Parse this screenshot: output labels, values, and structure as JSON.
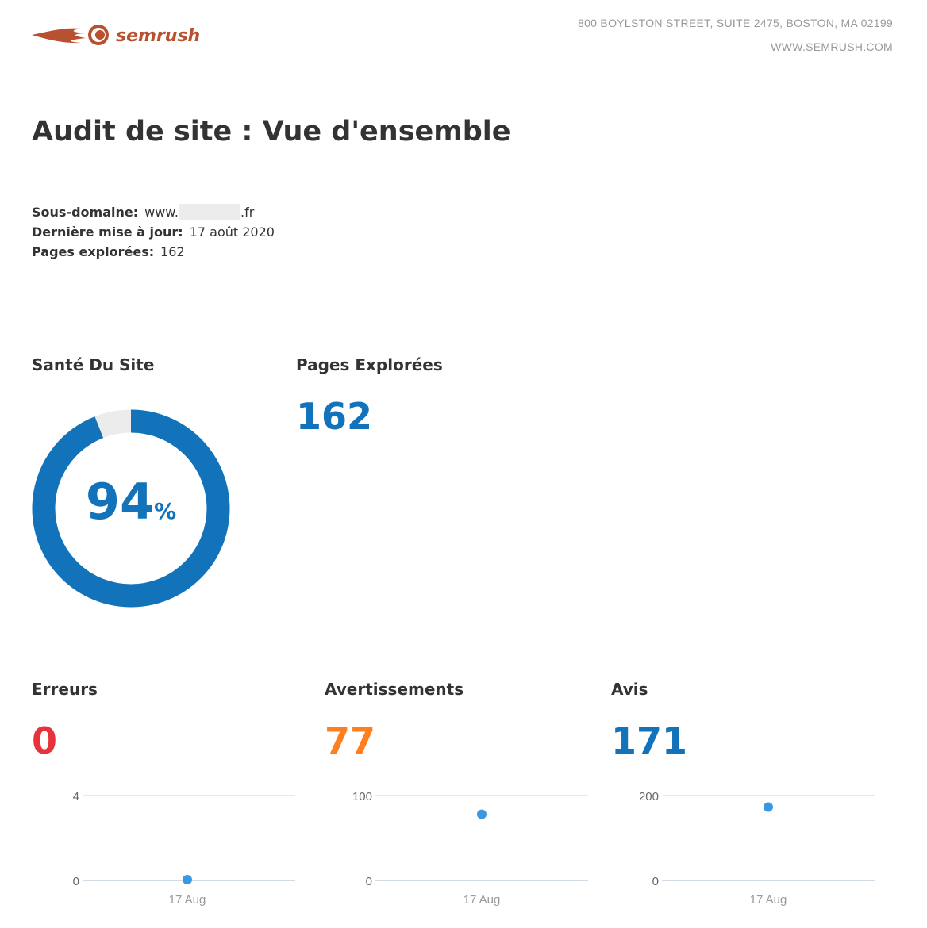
{
  "brand": {
    "name": "semrush",
    "color": "#b8512f"
  },
  "header": {
    "address": "800 BOYLSTON STREET, SUITE 2475, BOSTON, MA 02199",
    "website": "WWW.SEMRUSH.COM"
  },
  "title": "Audit de site : Vue d'ensemble",
  "meta": {
    "subdomain_label": "Sous-domaine:",
    "subdomain_prefix": "www.",
    "subdomain_suffix": ".fr",
    "updated_label": "Dernière mise à jour:",
    "updated_value": "17 août 2020",
    "pages_label": "Pages explorées:",
    "pages_value": "162"
  },
  "health": {
    "label": "Santé Du Site",
    "value": "94",
    "unit": "%",
    "percent": 94,
    "color": "#1273ba",
    "rest_color": "#ececec"
  },
  "crawled": {
    "label": "Pages Explorées",
    "value": "162",
    "color": "#1273ba"
  },
  "metrics": [
    {
      "label": "Erreurs",
      "value": "0",
      "color": "#e8313a"
    },
    {
      "label": "Avertissements",
      "value": "77",
      "color": "#ff7f1f"
    },
    {
      "label": "Avis",
      "value": "171",
      "color": "#1273ba"
    }
  ],
  "chart_data": [
    {
      "type": "scatter",
      "title": "Erreurs",
      "x": [
        "17 Aug"
      ],
      "values": [
        0
      ],
      "ylim": [
        0,
        4
      ],
      "yticks": [
        "0",
        "4"
      ],
      "grid": true
    },
    {
      "type": "scatter",
      "title": "Avertissements",
      "x": [
        "17 Aug"
      ],
      "values": [
        77
      ],
      "ylim": [
        0,
        100
      ],
      "yticks": [
        "0",
        "100"
      ],
      "grid": true
    },
    {
      "type": "scatter",
      "title": "Avis",
      "x": [
        "17 Aug"
      ],
      "values": [
        171
      ],
      "ylim": [
        0,
        200
      ],
      "yticks": [
        "0",
        "200"
      ],
      "grid": true
    }
  ]
}
